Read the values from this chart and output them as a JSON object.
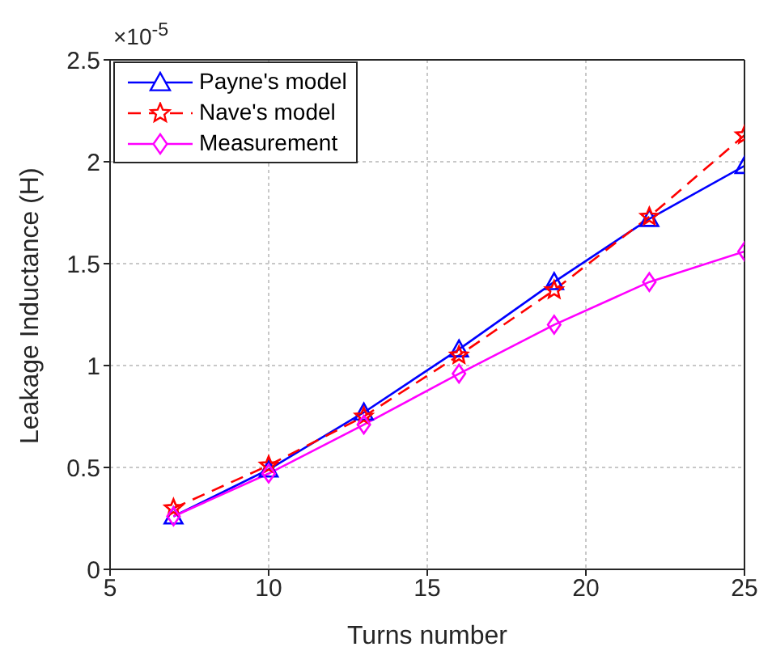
{
  "chart_data": {
    "type": "line",
    "xlabel": "Turns number",
    "ylabel": "Leakage Inductance (H)",
    "annotations": [
      "×10$^{-5}$"
    ],
    "x": [
      7,
      10,
      13,
      16,
      19,
      22,
      25
    ],
    "xlim": [
      5,
      25
    ],
    "xticks": [
      5,
      10,
      15,
      20,
      25
    ],
    "ylim": [
      0,
      2.5
    ],
    "yticks": [
      0,
      0.5,
      1,
      1.5,
      2,
      2.5
    ],
    "grid": true,
    "legend": "top left",
    "series": [
      {
        "name": "Payne's model",
        "color": "#0000ff",
        "marker": "triangle",
        "line_style": "solid",
        "values": [
          0.26,
          0.49,
          0.77,
          1.08,
          1.41,
          1.72,
          1.98
        ]
      },
      {
        "name": "Nave's model",
        "color": "#ff0000",
        "marker": "star",
        "line_style": "dashed",
        "values": [
          0.3,
          0.51,
          0.75,
          1.05,
          1.37,
          1.73,
          2.13
        ]
      },
      {
        "name": "Measurement",
        "color": "#ff00ff",
        "marker": "diamond",
        "line_style": "solid",
        "values": [
          0.26,
          0.47,
          0.71,
          0.96,
          1.2,
          1.41,
          1.56
        ]
      }
    ]
  }
}
